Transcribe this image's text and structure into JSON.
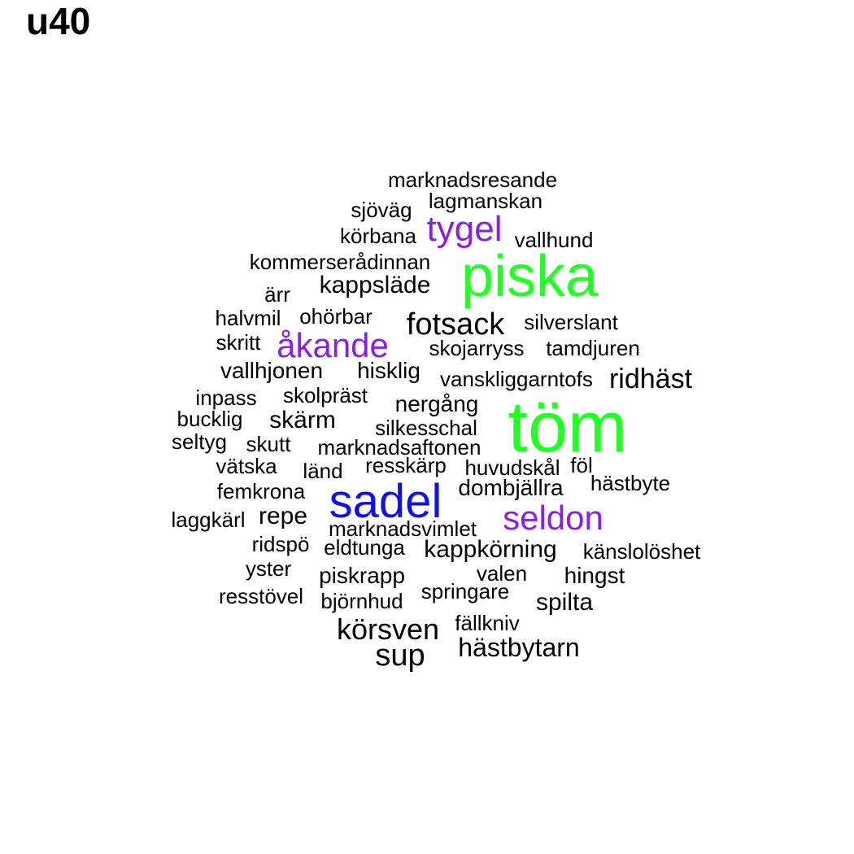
{
  "title": "u40",
  "colors": {
    "black": "#000000",
    "green": "#22ff22",
    "purple": "#8a1ee6",
    "blue": "#1010ee"
  },
  "words": [
    {
      "text": "marknadsresande",
      "color": "black"
    },
    {
      "text": "lagmanskan",
      "color": "black"
    },
    {
      "text": "sjöväg",
      "color": "black"
    },
    {
      "text": "tygel",
      "color": "purple"
    },
    {
      "text": "körbana",
      "color": "black"
    },
    {
      "text": "vallhund",
      "color": "black"
    },
    {
      "text": "kommerserådinnan",
      "color": "black"
    },
    {
      "text": "piska",
      "color": "green"
    },
    {
      "text": "kappsläde",
      "color": "black"
    },
    {
      "text": "ärr",
      "color": "black"
    },
    {
      "text": "halvmil",
      "color": "black"
    },
    {
      "text": "ohörbar",
      "color": "black"
    },
    {
      "text": "fotsack",
      "color": "black"
    },
    {
      "text": "silverslant",
      "color": "black"
    },
    {
      "text": "skritt",
      "color": "black"
    },
    {
      "text": "åkande",
      "color": "purple"
    },
    {
      "text": "skojarryss",
      "color": "black"
    },
    {
      "text": "tamdjuren",
      "color": "black"
    },
    {
      "text": "vallhjonen",
      "color": "black"
    },
    {
      "text": "hisklig",
      "color": "black"
    },
    {
      "text": "vanskliggarntofs",
      "color": "black"
    },
    {
      "text": "ridhäst",
      "color": "black"
    },
    {
      "text": "inpass",
      "color": "black"
    },
    {
      "text": "skolpräst",
      "color": "black"
    },
    {
      "text": "nergång",
      "color": "black"
    },
    {
      "text": "töm",
      "color": "green"
    },
    {
      "text": "bucklig",
      "color": "black"
    },
    {
      "text": "skärm",
      "color": "black"
    },
    {
      "text": "silkesschal",
      "color": "black"
    },
    {
      "text": "seltyg",
      "color": "black"
    },
    {
      "text": "skutt",
      "color": "black"
    },
    {
      "text": "marknadsaftonen",
      "color": "black"
    },
    {
      "text": "vätska",
      "color": "black"
    },
    {
      "text": "länd",
      "color": "black"
    },
    {
      "text": "resskärp",
      "color": "black"
    },
    {
      "text": "huvudskål",
      "color": "black"
    },
    {
      "text": "föl",
      "color": "black"
    },
    {
      "text": "femkrona",
      "color": "black"
    },
    {
      "text": "hästbyte",
      "color": "black"
    },
    {
      "text": "dombjällra",
      "color": "black"
    },
    {
      "text": "sadel",
      "color": "blue"
    },
    {
      "text": "laggkärl",
      "color": "black"
    },
    {
      "text": "repe",
      "color": "black"
    },
    {
      "text": "seldon",
      "color": "purple"
    },
    {
      "text": "marknadsvimlet",
      "color": "black"
    },
    {
      "text": "ridspö",
      "color": "black"
    },
    {
      "text": "eldtunga",
      "color": "black"
    },
    {
      "text": "kappkörning",
      "color": "black"
    },
    {
      "text": "känslolöshet",
      "color": "black"
    },
    {
      "text": "yster",
      "color": "black"
    },
    {
      "text": "piskrapp",
      "color": "black"
    },
    {
      "text": "valen",
      "color": "black"
    },
    {
      "text": "hingst",
      "color": "black"
    },
    {
      "text": "springare",
      "color": "black"
    },
    {
      "text": "resstövel",
      "color": "black"
    },
    {
      "text": "björnhud",
      "color": "black"
    },
    {
      "text": "spilta",
      "color": "black"
    },
    {
      "text": "fällkniv",
      "color": "black"
    },
    {
      "text": "körsven",
      "color": "black"
    },
    {
      "text": "hästbytarn",
      "color": "black"
    },
    {
      "text": "sup",
      "color": "black"
    }
  ]
}
